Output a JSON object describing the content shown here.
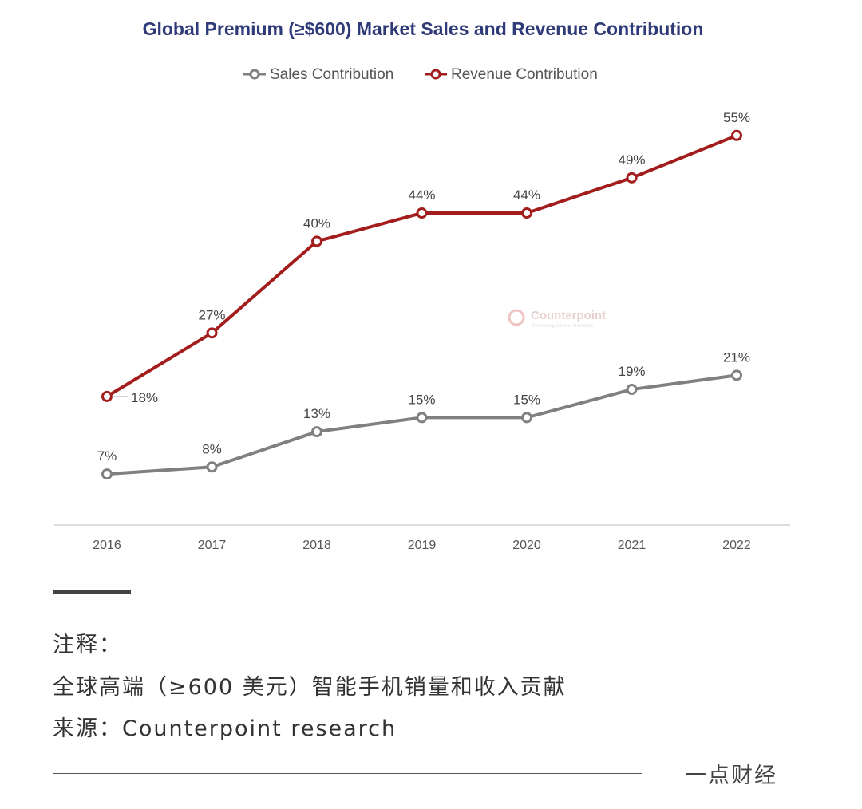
{
  "chart_data": {
    "type": "line",
    "title": "Global Premium (≥$600) Market Sales and Revenue Contribution",
    "categories": [
      "2016",
      "2017",
      "2018",
      "2019",
      "2020",
      "2021",
      "2022"
    ],
    "series": [
      {
        "name": "Sales Contribution",
        "color": "#808080",
        "values": [
          7,
          8,
          13,
          15,
          15,
          19,
          21
        ],
        "labels": [
          "7%",
          "8%",
          "13%",
          "15%",
          "15%",
          "19%",
          "21%"
        ]
      },
      {
        "name": "Revenue Contribution",
        "color": "#a31d1d",
        "values": [
          18,
          27,
          40,
          44,
          44,
          49,
          55
        ],
        "labels": [
          "18%",
          "27%",
          "40%",
          "44%",
          "44%",
          "49%",
          "55%"
        ]
      }
    ],
    "unit": "%",
    "legend": "top-center",
    "grid": false,
    "watermark": "Counterpoint Technology Market Research"
  },
  "notes": {
    "heading": "注释：",
    "line1": "全球高端（≥600 美元）智能手机销量和收入贡献",
    "line2": "来源：Counterpoint research"
  },
  "brand": "一点财经"
}
